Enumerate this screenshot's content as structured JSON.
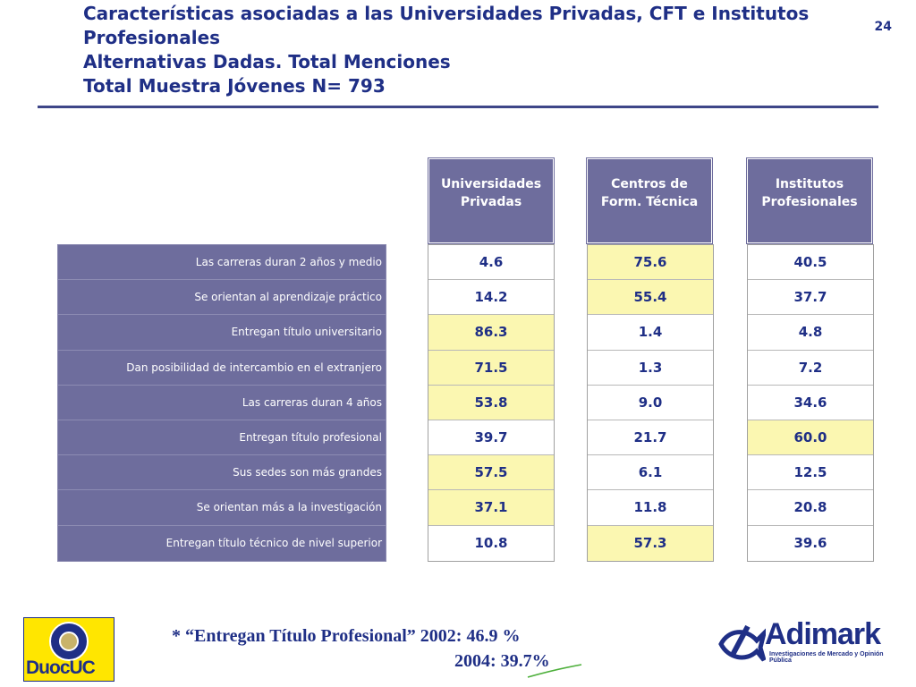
{
  "header": {
    "title_line1": "Características asociadas a  las  Universidades Privadas, CFT e Institutos",
    "title_line2": "Profesionales",
    "title_line3": "Alternativas Dadas. Total Menciones",
    "title_line4": "Total Muestra Jóvenes N= 793",
    "page_number": "24"
  },
  "table": {
    "columns": [
      {
        "line1": "Universidades",
        "line2": "Privadas"
      },
      {
        "line1": "Centros de",
        "line2": "Form. Técnica"
      },
      {
        "line1": "Institutos",
        "line2": "Profesionales"
      }
    ],
    "rows": [
      {
        "label": "Las carreras duran 2 años y medio",
        "values": [
          "4.6",
          "75.6",
          "40.5"
        ],
        "highlight": 1
      },
      {
        "label": "Se orientan al aprendizaje práctico",
        "values": [
          "14.2",
          "55.4",
          "37.7"
        ],
        "highlight": 1
      },
      {
        "label": "Entregan título universitario",
        "values": [
          "86.3",
          "1.4",
          "4.8"
        ],
        "highlight": 0
      },
      {
        "label": "Dan posibilidad de intercambio en el extranjero",
        "values": [
          "71.5",
          "1.3",
          "7.2"
        ],
        "highlight": 0
      },
      {
        "label": "Las carreras duran 4 años",
        "values": [
          "53.8",
          "9.0",
          "34.6"
        ],
        "highlight": 0
      },
      {
        "label": "Entregan título profesional",
        "values": [
          "39.7",
          "21.7",
          "60.0"
        ],
        "highlight": 2
      },
      {
        "label": "Sus sedes son más grandes",
        "values": [
          "57.5",
          "6.1",
          "12.5"
        ],
        "highlight": 0
      },
      {
        "label": "Se orientan más a la investigación",
        "values": [
          "37.1",
          "11.8",
          "20.8"
        ],
        "highlight": 0
      },
      {
        "label": "Entregan título técnico de nivel superior",
        "values": [
          "10.8",
          "57.3",
          "39.6"
        ],
        "highlight": 1
      }
    ]
  },
  "footnote": {
    "line1": "* “Entregan Título Profesional” 2002: 46.9 %",
    "line2": "2004: 39.7%"
  },
  "logos": {
    "duoc_text": "DuocUC",
    "adimark_text": "Adimark",
    "adimark_subtitle": "Investigaciones de Mercado y Opinión Pública"
  },
  "colors": {
    "title": "#1f2f86",
    "header_fill": "#6e6d9d",
    "highlight_fill": "#fbf7b1"
  }
}
